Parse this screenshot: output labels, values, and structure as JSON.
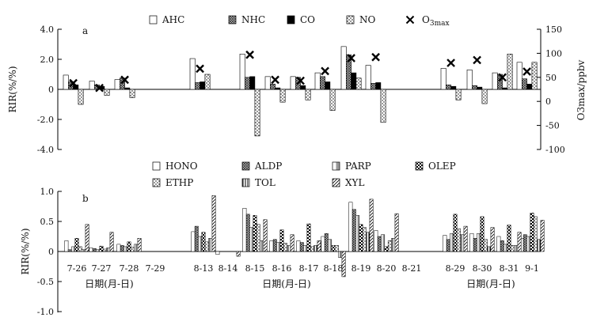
{
  "chart_data": [
    {
      "panel_label": "a",
      "type": "bar",
      "ylabel": "RIR(%/%)",
      "ylim": [
        -4.0,
        4.0
      ],
      "yticks": [
        -4.0,
        -2.0,
        0,
        2.0,
        4.0
      ],
      "y2label": "O3max/ppbv",
      "y2lim": [
        -100,
        150
      ],
      "y2ticks": [
        -100,
        -50,
        0,
        50,
        100,
        150
      ],
      "legend": {
        "placement": "top",
        "series_labels": [
          "AHC",
          "NHC",
          "CO",
          "NO"
        ],
        "marker_label_main": "O",
        "marker_label_sub1": "3",
        "marker_label_sub2": "max"
      },
      "series": [
        {
          "name": "AHC",
          "fill": "white",
          "values": [
            0.95,
            0.55,
            0.65,
            2.05,
            2.35,
            0.85,
            0.85,
            1.1,
            2.85,
            1.6,
            1.4,
            1.3,
            1.1,
            1.8
          ]
        },
        {
          "name": "NHC",
          "fill": "crosshatch",
          "values": [
            0.5,
            0.3,
            0.75,
            0.45,
            0.8,
            0.35,
            0.8,
            0.85,
            2.3,
            0.4,
            0.3,
            0.25,
            1.0,
            0.7
          ]
        },
        {
          "name": "CO",
          "fill": "black",
          "values": [
            0.3,
            0.2,
            0.1,
            0.5,
            0.85,
            0.1,
            0.25,
            0.5,
            1.1,
            0.45,
            0.2,
            0.15,
            0.1,
            0.35
          ]
        },
        {
          "name": "NO",
          "fill": "dots",
          "values": [
            -1.0,
            -0.4,
            -0.55,
            1.0,
            -3.1,
            -0.85,
            -0.7,
            -1.4,
            0.75,
            -2.2,
            -0.7,
            -0.95,
            2.35,
            1.8
          ]
        }
      ],
      "o3max_ppbv": [
        38,
        28,
        45,
        68,
        97,
        45,
        43,
        63,
        90,
        92,
        80,
        86,
        50,
        62
      ]
    },
    {
      "panel_label": "b",
      "type": "bar",
      "xlabel": "日期(月-日)",
      "ylabel": "RIR(%/%)",
      "ylim": [
        -1.0,
        1.0
      ],
      "yticks": [
        -1.0,
        -0.5,
        0,
        0.5,
        1.0
      ],
      "legend": {
        "placement": "top"
      },
      "categories": [
        "7-26",
        "7-27",
        "7-28",
        "7-29",
        "8-13",
        "8-14",
        "8-15",
        "8-16",
        "8-17",
        "8-18",
        "8-19",
        "8-20",
        "8-21",
        "8-29",
        "8-30",
        "8-31",
        "9-1"
      ],
      "series": [
        {
          "name": "HONO",
          "fill": "white",
          "values": [
            0.18,
            0.06,
            0.12,
            null,
            0.33,
            -0.05,
            0.72,
            0.18,
            0.18,
            0.25,
            0.82,
            0.35,
            null,
            0.27,
            0.3,
            0.25,
            0.22
          ]
        },
        {
          "name": "ALDP",
          "fill": "crosshatch",
          "values": [
            0.03,
            0.05,
            0.1,
            null,
            0.42,
            null,
            0.62,
            0.2,
            0.15,
            0.3,
            0.7,
            0.25,
            null,
            0.2,
            0.22,
            0.18,
            0.28
          ]
        },
        {
          "name": "PARP",
          "fill": "halfgray",
          "values": [
            0.08,
            0.03,
            0.08,
            null,
            0.25,
            null,
            0.4,
            0.15,
            0.1,
            0.2,
            0.6,
            0.28,
            null,
            0.3,
            0.3,
            0.12,
            0.25
          ]
        },
        {
          "name": "OLEP",
          "fill": "checker",
          "values": [
            0.22,
            0.09,
            0.16,
            null,
            0.32,
            null,
            0.6,
            0.36,
            0.46,
            0.1,
            0.45,
            0.08,
            null,
            0.62,
            0.58,
            0.44,
            0.64
          ]
        },
        {
          "name": "ETHP",
          "fill": "dots",
          "values": [
            0.08,
            0.04,
            0.07,
            null,
            0.16,
            null,
            0.45,
            0.14,
            0.08,
            0.1,
            0.4,
            0.18,
            null,
            0.38,
            0.2,
            0.1,
            0.58
          ]
        },
        {
          "name": "TOL",
          "fill": "vlines",
          "values": [
            0.03,
            0.06,
            0.12,
            null,
            0.22,
            null,
            0.18,
            0.1,
            0.1,
            -0.1,
            0.32,
            0.22,
            null,
            0.28,
            0.08,
            0.1,
            0.2
          ]
        },
        {
          "name": "XYL",
          "fill": "diagonal",
          "values": [
            0.45,
            0.32,
            0.22,
            null,
            0.93,
            -0.08,
            0.53,
            0.28,
            0.18,
            -0.42,
            0.87,
            0.63,
            null,
            0.42,
            0.4,
            0.32,
            0.52
          ]
        }
      ]
    }
  ]
}
